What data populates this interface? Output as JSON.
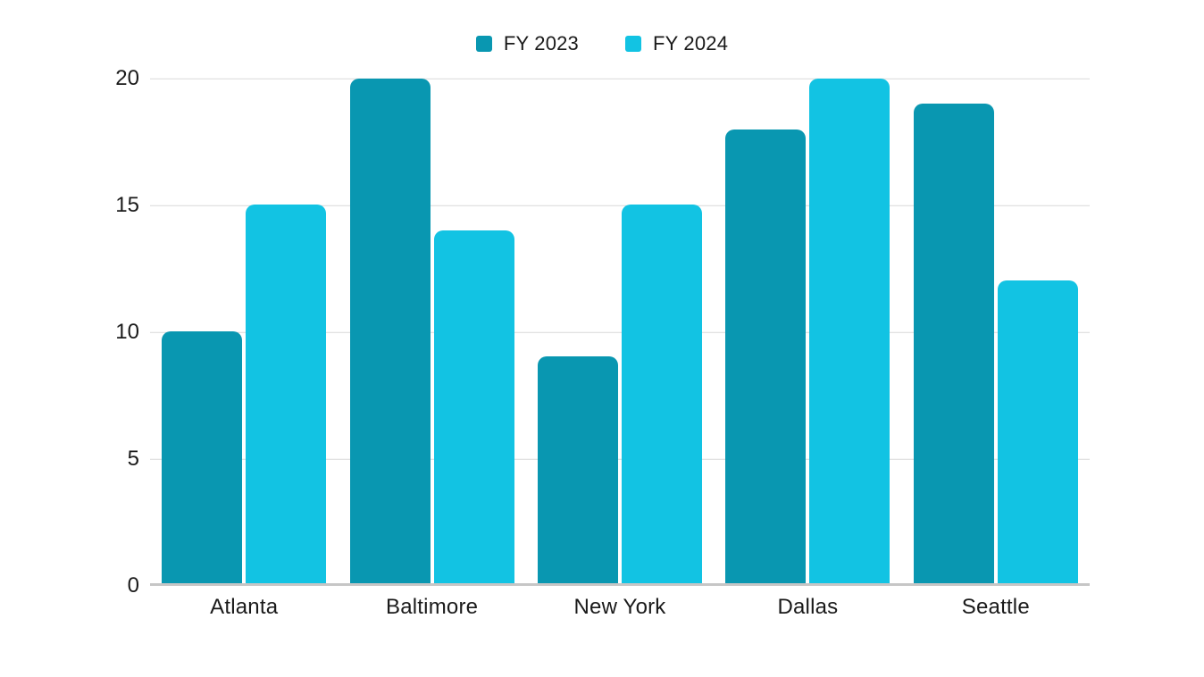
{
  "chart_style": {
    "background_color": "#ffffff",
    "text_color": "#1a1a1a",
    "gridline_color": "#d9d9d9",
    "baseline_color": "#c6c6c6",
    "series_colors": {
      "fy2023": "#0997b1",
      "fy2024": "#12c3e3"
    }
  },
  "chart_data": {
    "type": "bar",
    "title": "",
    "xlabel": "",
    "ylabel": "",
    "categories": [
      "Atlanta",
      "Baltimore",
      "New York",
      "Dallas",
      "Seattle"
    ],
    "series": [
      {
        "name": "FY 2023",
        "color": "#0997b1",
        "values": [
          10,
          20,
          9,
          18,
          19
        ]
      },
      {
        "name": "FY 2024",
        "color": "#12c3e3",
        "values": [
          15,
          14,
          15,
          20,
          12
        ]
      }
    ],
    "ylim": [
      0,
      20
    ],
    "yticks": [
      0,
      5,
      10,
      15,
      20
    ],
    "grid": true,
    "legend_position": "top-center"
  }
}
